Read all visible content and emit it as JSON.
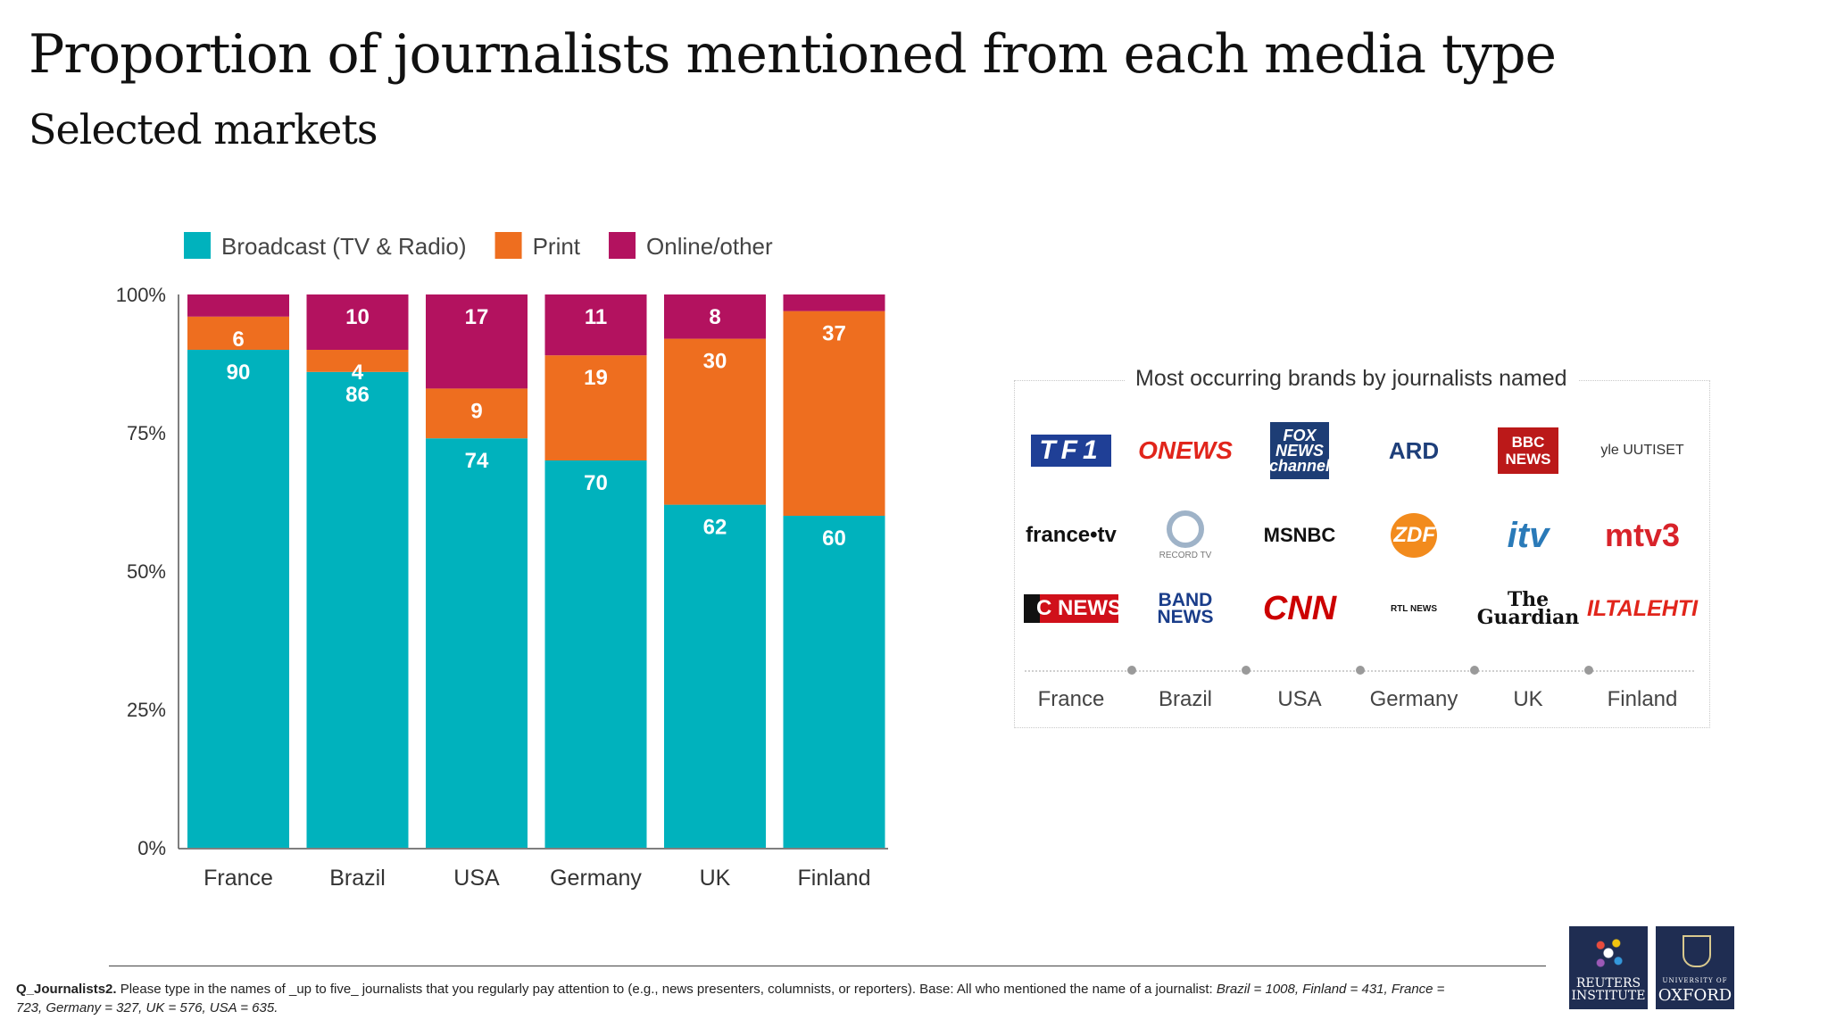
{
  "title": "Proportion of journalists mentioned from each media type",
  "subtitle": "Selected markets",
  "colors": {
    "broadcast": "#00b2bd",
    "print": "#ee6e1f",
    "online": "#b3125f"
  },
  "chart_data": {
    "type": "bar",
    "stacked": true,
    "categories": [
      "France",
      "Brazil",
      "USA",
      "Germany",
      "UK",
      "Finland"
    ],
    "series": [
      {
        "name": "Broadcast (TV & Radio)",
        "values": [
          90,
          86,
          74,
          70,
          62,
          60
        ],
        "labels": [
          "90",
          "86",
          "74",
          "70",
          "62",
          "60"
        ]
      },
      {
        "name": "Print",
        "values": [
          6,
          4,
          9,
          19,
          30,
          37
        ],
        "labels": [
          "6",
          "4",
          "9",
          "19",
          "30",
          "37"
        ]
      },
      {
        "name": "Online/other",
        "values": [
          4,
          10,
          17,
          11,
          8,
          3
        ],
        "labels": [
          "",
          "10",
          "17",
          "11",
          "8",
          ""
        ]
      }
    ],
    "yticks": [
      "0%",
      "25%",
      "50%",
      "75%",
      "100%"
    ],
    "ylim": [
      0,
      100
    ],
    "legend": "top-left",
    "grid": false
  },
  "brands": {
    "title": "Most occurring brands by journalists named",
    "markets": [
      "France",
      "Brazil",
      "USA",
      "Germany",
      "UK",
      "Finland"
    ],
    "rows": [
      [
        "TF1",
        "ONEWS",
        "FOX NEWS channel",
        "ARD",
        "BBC NEWS",
        "yle UUTISET"
      ],
      [
        "france•tv",
        "RECORD TV",
        "MSNBC",
        "ZDF",
        "itv",
        "mtv3"
      ],
      [
        "C NEWS",
        "BAND NEWS",
        "CNN",
        "RTL NEWS",
        "The Guardian",
        "ILTALEHTI"
      ]
    ]
  },
  "footnote": {
    "question": "Q_Journalists2.",
    "text": " Please type in the names of _up to five_ journalists that you regularly pay attention to (e.g., news presenters, columnists, or reporters). Base: All who mentioned the name of a journalist: ",
    "bases": "Brazil = 1008, Finland = 431, France = 723, Germany = 327, UK = 576, USA = 635."
  },
  "logos": {
    "reuters": "REUTERS INSTITUTE",
    "oxford_small": "UNIVERSITY OF",
    "oxford": "OXFORD"
  }
}
